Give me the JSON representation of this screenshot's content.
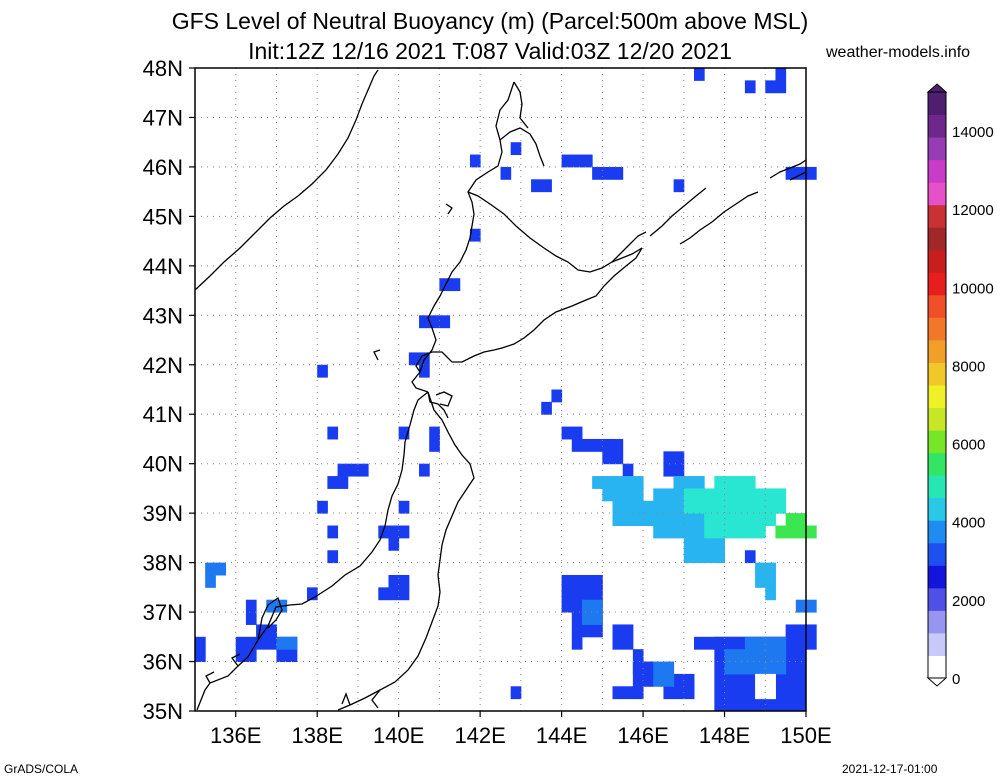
{
  "title": {
    "line1": "GFS Level of Neutral Buoyancy (m) (Parcel:500m above MSL)",
    "line2": "Init:12Z 12/16 2021 T:087 Valid:03Z 12/20 2021"
  },
  "site": "weather-models.info",
  "footer": {
    "left": "GrADS/COLA",
    "right": "2021-12-17-01:00"
  },
  "map": {
    "lat_labels": [
      "48N",
      "47N",
      "46N",
      "45N",
      "44N",
      "43N",
      "42N",
      "41N",
      "40N",
      "39N",
      "38N",
      "37N",
      "36N",
      "35N"
    ],
    "lon_labels": [
      "136E",
      "138E",
      "140E",
      "142E",
      "144E",
      "146E",
      "148E",
      "150E"
    ],
    "lat_range": [
      35,
      48
    ],
    "lon_range": [
      135,
      150
    ],
    "grid": "dotted"
  },
  "colorbar": {
    "labels": [
      "14000",
      "12000",
      "10000",
      "8000",
      "6000",
      "4000",
      "2000",
      "0"
    ],
    "values": [
      14000,
      12000,
      10000,
      8000,
      6000,
      4000,
      2000,
      0
    ],
    "range": [
      0,
      15000
    ]
  },
  "colors": {
    "blue": "#1a3cf0",
    "midblue": "#1e78f0",
    "lightblue": "#28b4f0",
    "cyan": "#28e6d2",
    "green": "#3ce650"
  }
}
